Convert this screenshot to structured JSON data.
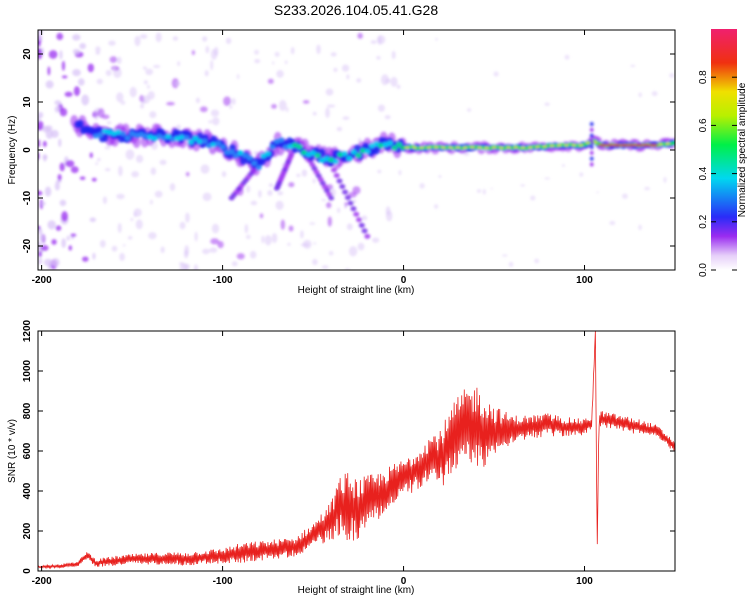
{
  "chart_data": [
    {
      "type": "heatmap",
      "title": "S233.2026.104.05.41.G28",
      "xlabel": "Height of straight line (km)",
      "ylabel": "Frequency (Hz)",
      "xlim": [
        -202,
        150
      ],
      "ylim": [
        -25,
        25
      ],
      "xticks": [
        -200,
        -100,
        0,
        100
      ],
      "xtick_labels": [
        "-200",
        "-100",
        "0",
        "100"
      ],
      "yticks": [
        -20,
        -10,
        0,
        10,
        20
      ],
      "ytick_labels": [
        "-20",
        "-10",
        "0",
        "10",
        "20"
      ],
      "colorbar": {
        "label": "Normalized spectral amplitude",
        "range": [
          0,
          1
        ],
        "ticks": [
          0.0,
          0.2,
          0.4,
          0.6,
          0.8
        ],
        "tick_labels": [
          "0.0",
          "0.2",
          "0.4",
          "0.6",
          "0.8"
        ],
        "colormap": "rainbow (white-violet-blue-cyan-green-yellow-red-magenta)"
      },
      "ridge": {
        "x": [
          -180,
          -170,
          -160,
          -150,
          -140,
          -130,
          -120,
          -110,
          -100,
          -90,
          -80,
          -70,
          -60,
          -50,
          -40,
          -30,
          -20,
          -10,
          0,
          10,
          20,
          30,
          40,
          50,
          60,
          70,
          80,
          90,
          100,
          104,
          110,
          120,
          130,
          140,
          150
        ],
        "y": [
          5,
          3.5,
          3,
          3,
          3,
          3,
          2.5,
          2,
          0.5,
          -1,
          -3,
          1.5,
          1,
          -1,
          -2,
          -1,
          0,
          1.5,
          0.5,
          0.5,
          0.5,
          0.5,
          0.5,
          0.5,
          0.5,
          0.5,
          0.8,
          1,
          1,
          2,
          1,
          1,
          1,
          1,
          1.5
        ]
      }
    },
    {
      "type": "line",
      "xlabel": "Height of straight line (km)",
      "ylabel": "SNR (10 * v/v)",
      "xlim": [
        -202,
        150
      ],
      "ylim": [
        0,
        1200
      ],
      "xticks": [
        -200,
        -100,
        0,
        100
      ],
      "xtick_labels": [
        "-200",
        "-100",
        "0",
        "100"
      ],
      "yticks": [
        0,
        200,
        400,
        600,
        800,
        1000,
        1200
      ],
      "ytick_labels": [
        "0",
        "200",
        "400",
        "600",
        "800",
        "1000",
        "1200"
      ],
      "color": "#e8211e",
      "x": [
        -202,
        -190,
        -180,
        -175,
        -170,
        -160,
        -150,
        -140,
        -130,
        -120,
        -110,
        -100,
        -90,
        -80,
        -70,
        -60,
        -50,
        -40,
        -35,
        -30,
        -25,
        -20,
        -15,
        -10,
        -5,
        0,
        5,
        10,
        15,
        20,
        25,
        30,
        35,
        40,
        45,
        50,
        60,
        70,
        80,
        90,
        100,
        104,
        106,
        107,
        108,
        110,
        120,
        130,
        140,
        150
      ],
      "y": [
        20,
        25,
        35,
        80,
        40,
        50,
        60,
        60,
        65,
        60,
        70,
        75,
        90,
        100,
        110,
        120,
        180,
        250,
        330,
        320,
        310,
        350,
        370,
        400,
        430,
        470,
        490,
        530,
        560,
        560,
        620,
        700,
        720,
        720,
        700,
        700,
        710,
        720,
        730,
        720,
        720,
        740,
        1200,
        100,
        760,
        760,
        740,
        720,
        700,
        620
      ],
      "envelope_amplitude": [
        5,
        10,
        12,
        20,
        20,
        25,
        25,
        30,
        30,
        35,
        35,
        40,
        50,
        50,
        50,
        50,
        60,
        100,
        150,
        180,
        150,
        130,
        120,
        110,
        110,
        90,
        100,
        110,
        130,
        150,
        170,
        180,
        200,
        220,
        180,
        130,
        70,
        60,
        60,
        50,
        40,
        40,
        0,
        0,
        40,
        40,
        40,
        40,
        30,
        30
      ]
    }
  ]
}
